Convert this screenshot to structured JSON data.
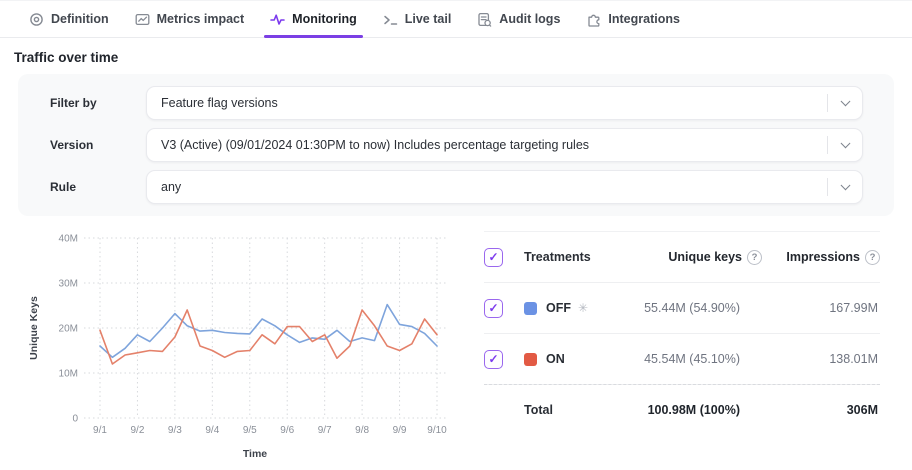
{
  "tabs": [
    {
      "label": "Definition",
      "icon": "target-icon",
      "active": false
    },
    {
      "label": "Metrics impact",
      "icon": "metrics-chart-icon",
      "active": false
    },
    {
      "label": "Monitoring",
      "icon": "pulse-icon",
      "active": true
    },
    {
      "label": "Live tail",
      "icon": "terminal-icon",
      "active": false
    },
    {
      "label": "Audit logs",
      "icon": "audit-logs-icon",
      "active": false
    },
    {
      "label": "Integrations",
      "icon": "puzzle-icon",
      "active": false
    }
  ],
  "section": {
    "title": "Traffic over time"
  },
  "filters": {
    "rows": [
      {
        "label": "Filter by",
        "value": "Feature flag versions"
      },
      {
        "label": "Version",
        "value": "V3 (Active) (09/01/2024 01:30PM to now) Includes percentage targeting rules"
      },
      {
        "label": "Rule",
        "value": "any"
      }
    ]
  },
  "treatments_table": {
    "header": {
      "treatments": "Treatments",
      "unique_keys": "Unique keys",
      "impressions": "Impressions",
      "checked": true
    },
    "rows": [
      {
        "label": "OFF",
        "default_marker": "✳",
        "swatch_color": "#6B92E4",
        "unique_keys": "55.44M (54.90%)",
        "impressions": "167.99M",
        "checked": true
      },
      {
        "label": "ON",
        "swatch_color": "#E25A44",
        "unique_keys": "45.54M (45.10%)",
        "impressions": "138.01M",
        "checked": true
      }
    ],
    "total": {
      "label": "Total",
      "unique_keys": "100.98M (100%)",
      "impressions": "306M"
    }
  },
  "chart_data": {
    "type": "line",
    "xlabel": "Time",
    "ylabel": "Unique Keys",
    "x_tick_labels": [
      "9/1",
      "9/2",
      "9/3",
      "9/4",
      "9/5",
      "9/6",
      "9/7",
      "9/8",
      "9/9",
      "9/10"
    ],
    "y_tick_labels": [
      "0",
      "10M",
      "20M",
      "30M",
      "40M"
    ],
    "y_unit": "millions",
    "xlim": [
      1,
      10
    ],
    "ylim": [
      0,
      40
    ],
    "grid": "dotted",
    "legend_position": "none",
    "x": [
      1,
      1.33,
      1.67,
      2,
      2.33,
      2.67,
      3,
      3.33,
      3.67,
      4,
      4.33,
      4.67,
      5,
      5.33,
      5.67,
      6,
      6.33,
      6.67,
      7,
      7.33,
      7.67,
      8,
      8.33,
      8.67,
      9,
      9.33,
      9.67,
      10
    ],
    "series": [
      {
        "name": "OFF",
        "color": "#7EA4DC",
        "values": [
          16,
          13.5,
          15.5,
          18.5,
          17,
          20,
          23.2,
          20.5,
          19.3,
          19.5,
          19,
          18.8,
          18.7,
          22,
          20.5,
          18.5,
          16.8,
          17.8,
          17.5,
          19.5,
          17,
          17.8,
          17.2,
          25.2,
          20.8,
          20.3,
          18.8,
          16
        ]
      },
      {
        "name": "ON",
        "color": "#E4816A",
        "values": [
          19.5,
          12,
          14,
          14.5,
          15,
          14.8,
          18,
          24,
          16,
          15,
          13.5,
          14.8,
          15,
          18.5,
          16.5,
          20.3,
          20.3,
          17,
          18.5,
          13.3,
          16,
          24,
          20.5,
          16,
          15,
          16.5,
          22,
          18.5
        ]
      }
    ]
  },
  "accent_color": "#7C3AED"
}
